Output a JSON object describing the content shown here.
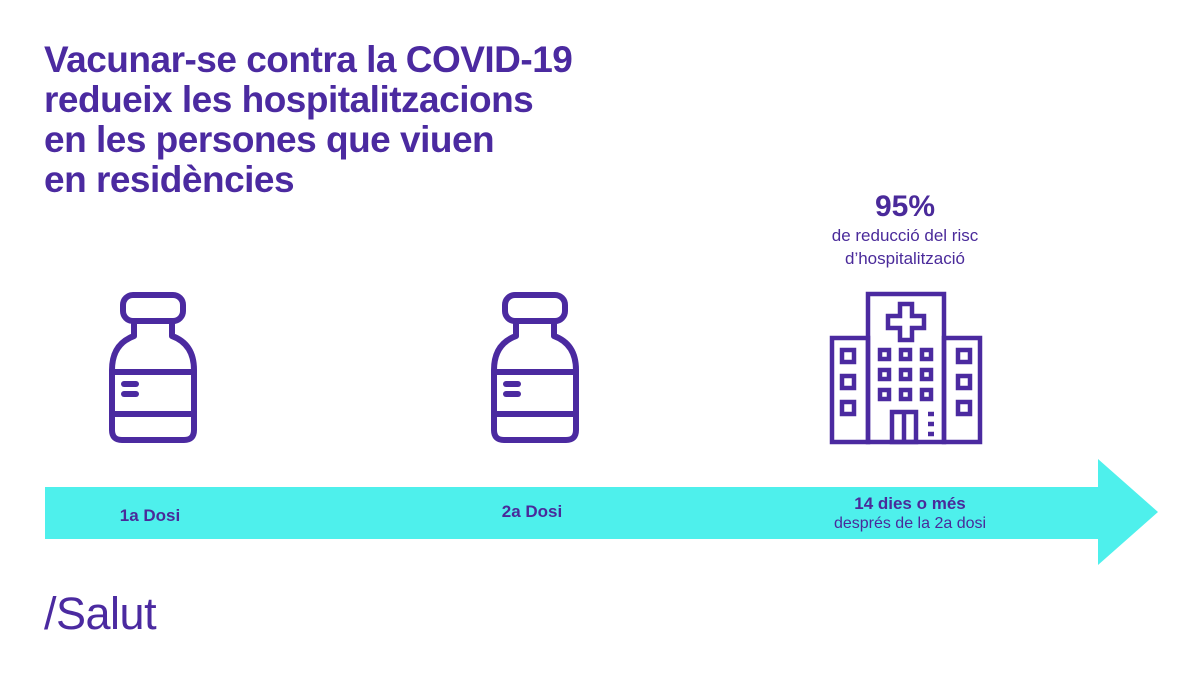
{
  "title": {
    "lines": [
      "Vacunar-se contra la COVID-19",
      "redueix les hospitalitzacions",
      "en les persones que viuen",
      "en residències"
    ]
  },
  "stat": {
    "value": "95%",
    "line1": "de reducció del risc",
    "line2": "d’hospitalització"
  },
  "timeline": {
    "dose1": "1a Dosi",
    "dose2": "2a Dosi",
    "after_main": "14 dies o més",
    "after_sub": "després de la 2a dosi"
  },
  "brand": "/Salut",
  "colors": {
    "purple": "#4b2aa0",
    "arrow": "#4ef0ec",
    "background": "#ffffff"
  },
  "icons": [
    "vaccine-vial-icon",
    "vaccine-vial-icon",
    "hospital-icon",
    "timeline-arrow"
  ]
}
